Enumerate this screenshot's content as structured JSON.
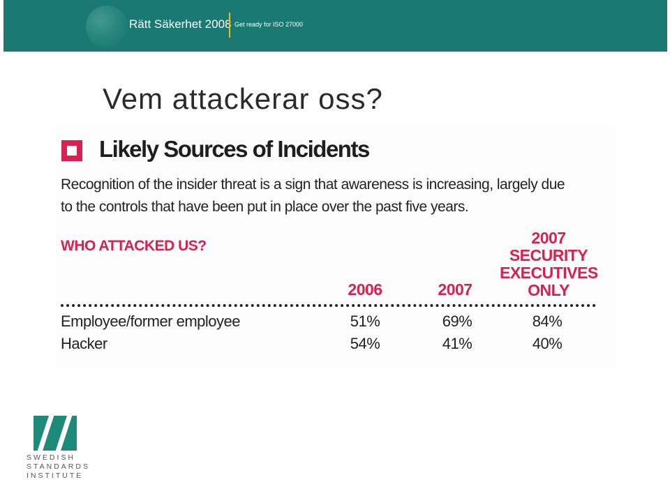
{
  "banner": {
    "title": "Rätt Säkerhet 2008",
    "subtitle": "Get ready for ISO 27000",
    "background_color": "#1a7a73"
  },
  "slide": {
    "title": "Vem attackerar oss?"
  },
  "panel": {
    "heading": "Likely Sources of Incidents",
    "description": "Recognition of the insider threat is a sign that awareness is increasing, largely due to the controls that have been put in place over the past five years.",
    "section_label": "WHO ATTACKED US?",
    "accent_color": "#d8214e",
    "columns": [
      "2006",
      "2007",
      "2007\nSECURITY\nEXECUTIVES\nONLY"
    ],
    "rows": [
      {
        "label": "Employee/former employee",
        "values": [
          "51%",
          "69%",
          "84%"
        ]
      },
      {
        "label": "Hacker",
        "values": [
          "54%",
          "41%",
          "40%"
        ]
      }
    ]
  },
  "footer": {
    "logo_text": "SIS",
    "org_name_lines": [
      "SWEDISH",
      "STANDARDS",
      "INSTITUTE"
    ],
    "logo_color": "#1e8a7a"
  }
}
